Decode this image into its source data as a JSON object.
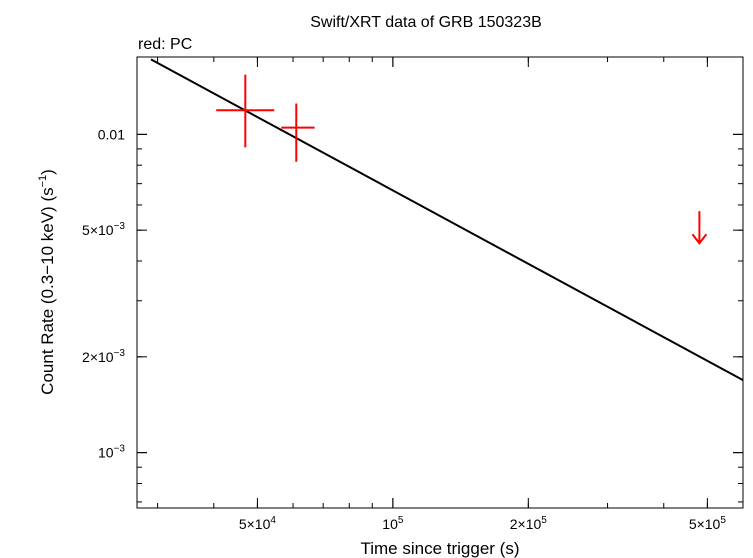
{
  "chart_data": {
    "type": "scatter",
    "title": "Swift/XRT data of GRB 150323B",
    "subtitle": "red: PC",
    "xlabel": "Time since trigger (s)",
    "ylabel_main": "Count Rate (0.3−10 keV) (s",
    "ylabel_sup": "−1",
    "ylabel_end": ")",
    "x_scale": "log",
    "y_scale": "log",
    "xlim": [
      27000,
      600000
    ],
    "ylim": [
      0.00067,
      0.0175
    ],
    "x_ticks": [
      {
        "value": 50000,
        "mant": "5×10",
        "exp": "4"
      },
      {
        "value": 100000,
        "mant": "10",
        "exp": "5"
      },
      {
        "value": 200000,
        "mant": "2×10",
        "exp": "5"
      },
      {
        "value": 500000,
        "mant": "5×10",
        "exp": "5"
      }
    ],
    "y_ticks": [
      {
        "value": 0.001,
        "mant": "10",
        "exp": "−3"
      },
      {
        "value": 0.002,
        "mant": "2×10",
        "exp": "−3"
      },
      {
        "value": 0.005,
        "mant": "5×10",
        "exp": "−3"
      },
      {
        "value": 0.01,
        "mant": "0.01",
        "exp": ""
      }
    ],
    "series": [
      {
        "name": "PC",
        "color": "#ff0000",
        "points": [
          {
            "x": 47000,
            "y": 0.0119,
            "xerr": [
              40500,
              54500
            ],
            "yerr": [
              0.0091,
              0.0154
            ]
          },
          {
            "x": 61000,
            "y": 0.0105,
            "xerr": [
              56500,
              67000
            ],
            "yerr": [
              0.0082,
              0.0125
            ]
          }
        ],
        "upper_limits": [
          {
            "x": 480000,
            "y": 0.00455
          }
        ]
      }
    ],
    "model_line": {
      "color": "#000000",
      "points": [
        [
          29000,
          0.0172
        ],
        [
          600000,
          0.00169
        ]
      ]
    },
    "grid": false,
    "legend": "none"
  }
}
